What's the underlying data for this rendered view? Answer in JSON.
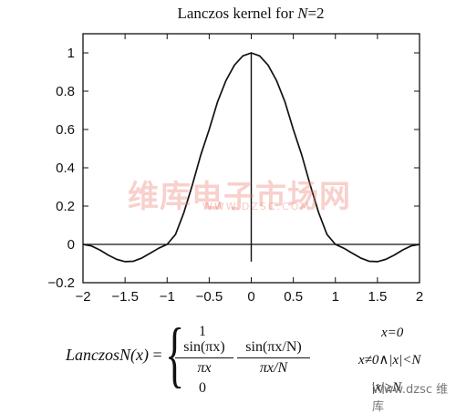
{
  "chart_data": {
    "type": "line",
    "title": "Lanczos kernel for N=2",
    "title_parts": {
      "prefix": "Lanczos kernel for ",
      "var": "N",
      "suffix": "=2"
    },
    "xlabel": "",
    "ylabel": "",
    "xlim": [
      -2,
      2
    ],
    "ylim": [
      -0.2,
      1.1
    ],
    "xticks": [
      -2,
      -1.5,
      -1,
      -0.5,
      0,
      0.5,
      1,
      1.5,
      2
    ],
    "xtick_labels": [
      "−2",
      "−1.5",
      "−1",
      "−0.5",
      "0",
      "0.5",
      "1",
      "1.5",
      "2"
    ],
    "yticks": [
      -0.2,
      0,
      0.2,
      0.4,
      0.6,
      0.8,
      1
    ],
    "ytick_labels": [
      "−0.2",
      "0",
      "0.2",
      "0.4",
      "0.6",
      "0.8",
      "1"
    ],
    "grid": false,
    "line_color": "#111111",
    "series": [
      {
        "x": [
          -2,
          -1.9,
          -1.8,
          -1.7,
          -1.6,
          -1.5,
          -1.4,
          -1.3,
          -1.2,
          -1.1,
          -1,
          -0.9,
          -0.8,
          -0.7,
          -0.6,
          -0.5,
          -0.4,
          -0.3,
          -0.2,
          -0.1,
          0,
          0.1,
          0.2,
          0.3,
          0.4,
          0.5,
          0.6,
          0.7,
          0.8,
          0.9,
          1,
          1.1,
          1.2,
          1.3,
          1.4,
          1.5,
          1.6,
          1.7,
          1.8,
          1.9,
          2
        ],
        "y": [
          0,
          -0.008,
          -0.029,
          -0.056,
          -0.078,
          -0.09,
          -0.088,
          -0.071,
          -0.046,
          -0.02,
          0,
          0.052,
          0.167,
          0.311,
          0.467,
          0.6,
          0.745,
          0.856,
          0.936,
          0.984,
          1,
          0.984,
          0.936,
          0.856,
          0.745,
          0.6,
          0.467,
          0.311,
          0.167,
          0.052,
          0,
          -0.02,
          -0.046,
          -0.071,
          -0.088,
          -0.09,
          -0.078,
          -0.056,
          -0.029,
          -0.008,
          0
        ]
      }
    ],
    "annotations": [
      "x=0 vertical line",
      "y=0 horizontal line"
    ]
  },
  "formula": {
    "lhs": "LanczosN(x)",
    "equals": "=",
    "case_one": "1",
    "case_zero": "0",
    "frac1_num": "sin(πx)",
    "frac1_den": "πx",
    "frac2_num": "sin(πx/N)",
    "frac2_den": "πx/N",
    "cond1": "x=0",
    "cond2": "x≠0∧|x|<N",
    "cond3": "|x|≥N"
  },
  "watermark": {
    "text": "维库电子市场网",
    "sub": "WWW.DZSC.COM"
  },
  "badge": "Www.dzsc 维库"
}
